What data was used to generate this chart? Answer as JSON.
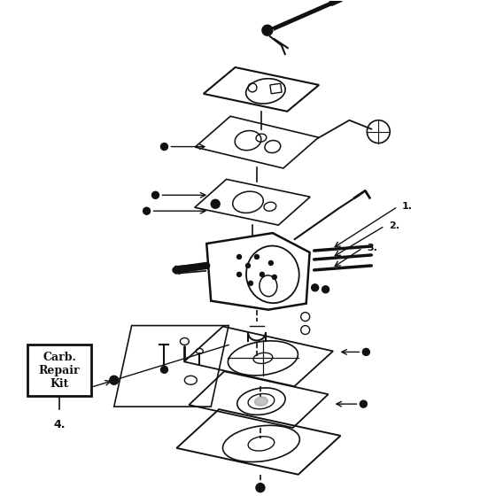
{
  "background_color": "#ffffff",
  "line_color": "#111111",
  "label_1": "1.",
  "label_2": "2.",
  "label_3": "3.",
  "label_4": "4.",
  "carb_box_text": "Carb.\nRepair\nKit",
  "figsize": [
    5.6,
    5.6
  ],
  "dpi": 100
}
